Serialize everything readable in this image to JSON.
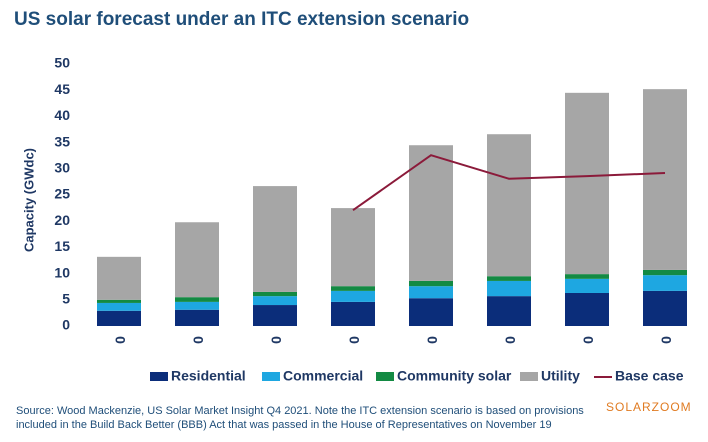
{
  "chart_data": {
    "type": "bar",
    "stacked": true,
    "title": "US solar forecast under an ITC extension scenario",
    "y_label": "Capacity (GWdc)",
    "categories": [
      "0",
      "0",
      "0",
      "0",
      "0",
      "0",
      "0",
      "0"
    ],
    "series": [
      {
        "name": "Residential",
        "color": "#0b2d7a",
        "values": [
          2.9,
          3.1,
          4.0,
          4.6,
          5.3,
          5.7,
          6.3,
          6.7
        ]
      },
      {
        "name": "Commercial",
        "color": "#1ea7e1",
        "values": [
          1.5,
          1.5,
          1.7,
          2.1,
          2.3,
          2.9,
          2.7,
          3.0
        ]
      },
      {
        "name": "Community solar",
        "color": "#138a43",
        "values": [
          0.6,
          0.9,
          0.8,
          0.9,
          1.0,
          0.9,
          0.9,
          1.0
        ]
      },
      {
        "name": "Utility",
        "color": "#a6a6a6",
        "values": [
          8.2,
          14.3,
          20.2,
          14.9,
          25.9,
          27.1,
          34.6,
          34.5
        ]
      },
      {
        "name": "Base case",
        "color": "#8b1a3a",
        "type": "line",
        "values": [
          null,
          null,
          null,
          22.1,
          32.6,
          28.1,
          28.6,
          29.2
        ]
      }
    ],
    "ylim": [
      0,
      50
    ],
    "yticks": [
      0,
      5,
      10,
      15,
      20,
      25,
      30,
      35,
      40,
      45,
      50
    ],
    "grid": false,
    "legend": "bottom",
    "source": "Source: Wood Mackenzie, US Solar Market Insight Q4 2021. Note the ITC extension scenario is based on provisions included in the Build Back Better (BBB) Act that was passed in the House of Representatives on November 19",
    "watermark": "SOLARZOOM"
  }
}
